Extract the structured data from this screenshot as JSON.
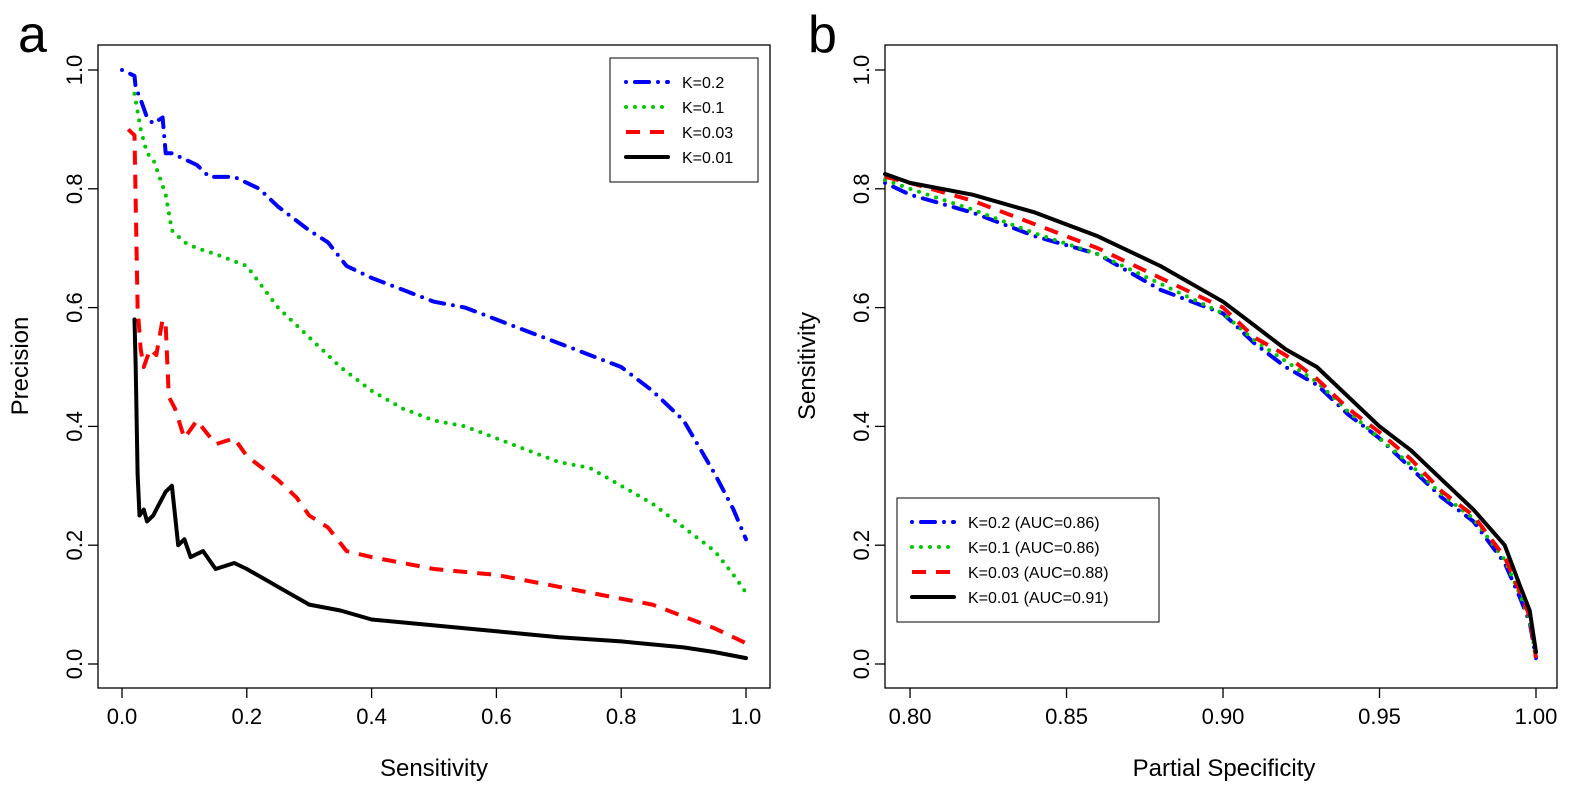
{
  "chart_data": [
    {
      "panel": "a",
      "type": "line",
      "xlabel": "Sensitivity",
      "ylabel": "Precision",
      "xlim": [
        0.0,
        1.0
      ],
      "ylim": [
        0.0,
        1.0
      ],
      "xticks": [
        "0.0",
        "0.2",
        "0.4",
        "0.6",
        "0.8",
        "1.0"
      ],
      "yticks": [
        "0.0",
        "0.2",
        "0.4",
        "0.6",
        "0.8",
        "1.0"
      ],
      "grid": false,
      "legend_position": "top-right",
      "series": [
        {
          "name": "K=0.2",
          "color": "#0000ff",
          "style": "dotdash",
          "points": [
            [
              0.0,
              1.0
            ],
            [
              0.02,
              0.99
            ],
            [
              0.022,
              0.97
            ],
            [
              0.03,
              0.95
            ],
            [
              0.04,
              0.92
            ],
            [
              0.05,
              0.91
            ],
            [
              0.065,
              0.92
            ],
            [
              0.07,
              0.86
            ],
            [
              0.08,
              0.86
            ],
            [
              0.1,
              0.85
            ],
            [
              0.12,
              0.84
            ],
            [
              0.14,
              0.82
            ],
            [
              0.18,
              0.82
            ],
            [
              0.22,
              0.8
            ],
            [
              0.25,
              0.77
            ],
            [
              0.3,
              0.73
            ],
            [
              0.33,
              0.71
            ],
            [
              0.36,
              0.67
            ],
            [
              0.4,
              0.65
            ],
            [
              0.45,
              0.63
            ],
            [
              0.5,
              0.61
            ],
            [
              0.55,
              0.6
            ],
            [
              0.6,
              0.58
            ],
            [
              0.65,
              0.56
            ],
            [
              0.7,
              0.54
            ],
            [
              0.75,
              0.52
            ],
            [
              0.8,
              0.5
            ],
            [
              0.85,
              0.46
            ],
            [
              0.9,
              0.41
            ],
            [
              0.95,
              0.32
            ],
            [
              0.98,
              0.26
            ],
            [
              1.0,
              0.21
            ]
          ]
        },
        {
          "name": "K=0.1",
          "color": "#00c800",
          "style": "dotted",
          "points": [
            [
              0.02,
              0.96
            ],
            [
              0.03,
              0.9
            ],
            [
              0.04,
              0.86
            ],
            [
              0.05,
              0.85
            ],
            [
              0.07,
              0.79
            ],
            [
              0.08,
              0.73
            ],
            [
              0.1,
              0.71
            ],
            [
              0.12,
              0.7
            ],
            [
              0.15,
              0.69
            ],
            [
              0.2,
              0.67
            ],
            [
              0.25,
              0.6
            ],
            [
              0.3,
              0.55
            ],
            [
              0.35,
              0.5
            ],
            [
              0.4,
              0.46
            ],
            [
              0.45,
              0.43
            ],
            [
              0.5,
              0.41
            ],
            [
              0.55,
              0.4
            ],
            [
              0.6,
              0.38
            ],
            [
              0.65,
              0.36
            ],
            [
              0.7,
              0.34
            ],
            [
              0.75,
              0.33
            ],
            [
              0.8,
              0.3
            ],
            [
              0.85,
              0.27
            ],
            [
              0.9,
              0.23
            ],
            [
              0.95,
              0.19
            ],
            [
              0.98,
              0.15
            ],
            [
              1.0,
              0.12
            ]
          ]
        },
        {
          "name": "K=0.03",
          "color": "#ff0000",
          "style": "dashed",
          "points": [
            [
              0.01,
              0.9
            ],
            [
              0.02,
              0.89
            ],
            [
              0.025,
              0.6
            ],
            [
              0.03,
              0.53
            ],
            [
              0.035,
              0.5
            ],
            [
              0.045,
              0.53
            ],
            [
              0.055,
              0.52
            ],
            [
              0.065,
              0.58
            ],
            [
              0.07,
              0.57
            ],
            [
              0.075,
              0.45
            ],
            [
              0.085,
              0.43
            ],
            [
              0.1,
              0.38
            ],
            [
              0.12,
              0.41
            ],
            [
              0.15,
              0.37
            ],
            [
              0.18,
              0.38
            ],
            [
              0.2,
              0.35
            ],
            [
              0.25,
              0.31
            ],
            [
              0.28,
              0.28
            ],
            [
              0.3,
              0.25
            ],
            [
              0.33,
              0.23
            ],
            [
              0.36,
              0.19
            ],
            [
              0.4,
              0.18
            ],
            [
              0.45,
              0.17
            ],
            [
              0.5,
              0.16
            ],
            [
              0.6,
              0.15
            ],
            [
              0.7,
              0.13
            ],
            [
              0.8,
              0.11
            ],
            [
              0.85,
              0.1
            ],
            [
              0.9,
              0.08
            ],
            [
              0.95,
              0.06
            ],
            [
              1.0,
              0.035
            ]
          ]
        },
        {
          "name": "K=0.01",
          "color": "#000000",
          "style": "solid",
          "points": [
            [
              0.02,
              0.58
            ],
            [
              0.022,
              0.5
            ],
            [
              0.025,
              0.32
            ],
            [
              0.028,
              0.25
            ],
            [
              0.035,
              0.26
            ],
            [
              0.04,
              0.24
            ],
            [
              0.05,
              0.25
            ],
            [
              0.06,
              0.27
            ],
            [
              0.07,
              0.29
            ],
            [
              0.08,
              0.3
            ],
            [
              0.09,
              0.2
            ],
            [
              0.1,
              0.21
            ],
            [
              0.11,
              0.18
            ],
            [
              0.13,
              0.19
            ],
            [
              0.15,
              0.16
            ],
            [
              0.18,
              0.17
            ],
            [
              0.2,
              0.16
            ],
            [
              0.25,
              0.13
            ],
            [
              0.3,
              0.1
            ],
            [
              0.35,
              0.09
            ],
            [
              0.4,
              0.075
            ],
            [
              0.5,
              0.065
            ],
            [
              0.6,
              0.055
            ],
            [
              0.7,
              0.045
            ],
            [
              0.8,
              0.038
            ],
            [
              0.9,
              0.028
            ],
            [
              0.95,
              0.02
            ],
            [
              1.0,
              0.01
            ]
          ]
        }
      ]
    },
    {
      "panel": "b",
      "type": "line",
      "xlabel": "Partial Specificity",
      "ylabel": "Sensitivity",
      "xlim": [
        0.792,
        1.0
      ],
      "ylim": [
        0.0,
        1.0
      ],
      "xticks": [
        "0.80",
        "0.85",
        "0.90",
        "0.95",
        "1.00"
      ],
      "yticks": [
        "0.0",
        "0.2",
        "0.4",
        "0.6",
        "0.8",
        "1.0"
      ],
      "grid": false,
      "legend_position": "bottom-left",
      "series": [
        {
          "name": "K=0.2 (AUC=0.86)",
          "color": "#0000ff",
          "style": "dotdash",
          "points": [
            [
              0.792,
              0.81
            ],
            [
              0.8,
              0.79
            ],
            [
              0.82,
              0.76
            ],
            [
              0.84,
              0.72
            ],
            [
              0.86,
              0.69
            ],
            [
              0.88,
              0.63
            ],
            [
              0.9,
              0.59
            ],
            [
              0.91,
              0.54
            ],
            [
              0.92,
              0.5
            ],
            [
              0.93,
              0.47
            ],
            [
              0.94,
              0.42
            ],
            [
              0.95,
              0.38
            ],
            [
              0.96,
              0.33
            ],
            [
              0.97,
              0.28
            ],
            [
              0.98,
              0.24
            ],
            [
              0.99,
              0.17
            ],
            [
              0.995,
              0.11
            ],
            [
              0.998,
              0.07
            ],
            [
              1.0,
              0.01
            ]
          ]
        },
        {
          "name": "K=0.1 (AUC=0.86)",
          "color": "#00c800",
          "style": "dotted",
          "points": [
            [
              0.792,
              0.815
            ],
            [
              0.8,
              0.8
            ],
            [
              0.82,
              0.765
            ],
            [
              0.84,
              0.725
            ],
            [
              0.86,
              0.69
            ],
            [
              0.88,
              0.64
            ],
            [
              0.9,
              0.59
            ],
            [
              0.91,
              0.545
            ],
            [
              0.92,
              0.51
            ],
            [
              0.93,
              0.475
            ],
            [
              0.94,
              0.425
            ],
            [
              0.95,
              0.38
            ],
            [
              0.96,
              0.335
            ],
            [
              0.97,
              0.285
            ],
            [
              0.98,
              0.245
            ],
            [
              0.99,
              0.175
            ],
            [
              0.995,
              0.115
            ],
            [
              0.998,
              0.075
            ],
            [
              1.0,
              0.01
            ]
          ]
        },
        {
          "name": "K=0.03 (AUC=0.88)",
          "color": "#ff0000",
          "style": "dashed",
          "points": [
            [
              0.792,
              0.82
            ],
            [
              0.8,
              0.81
            ],
            [
              0.82,
              0.78
            ],
            [
              0.84,
              0.74
            ],
            [
              0.86,
              0.7
            ],
            [
              0.88,
              0.65
            ],
            [
              0.9,
              0.6
            ],
            [
              0.91,
              0.55
            ],
            [
              0.92,
              0.52
            ],
            [
              0.93,
              0.48
            ],
            [
              0.94,
              0.43
            ],
            [
              0.95,
              0.39
            ],
            [
              0.96,
              0.345
            ],
            [
              0.97,
              0.29
            ],
            [
              0.98,
              0.25
            ],
            [
              0.99,
              0.18
            ],
            [
              0.995,
              0.12
            ],
            [
              0.998,
              0.08
            ],
            [
              1.0,
              0.01
            ]
          ]
        },
        {
          "name": "K=0.01 (AUC=0.91)",
          "color": "#000000",
          "style": "solid",
          "points": [
            [
              0.792,
              0.825
            ],
            [
              0.8,
              0.81
            ],
            [
              0.82,
              0.79
            ],
            [
              0.84,
              0.76
            ],
            [
              0.86,
              0.72
            ],
            [
              0.88,
              0.67
            ],
            [
              0.9,
              0.61
            ],
            [
              0.91,
              0.57
            ],
            [
              0.92,
              0.53
            ],
            [
              0.93,
              0.5
            ],
            [
              0.94,
              0.45
            ],
            [
              0.95,
              0.4
            ],
            [
              0.96,
              0.36
            ],
            [
              0.97,
              0.31
            ],
            [
              0.98,
              0.26
            ],
            [
              0.99,
              0.2
            ],
            [
              0.995,
              0.13
            ],
            [
              0.998,
              0.09
            ],
            [
              1.0,
              0.02
            ]
          ]
        }
      ]
    }
  ]
}
